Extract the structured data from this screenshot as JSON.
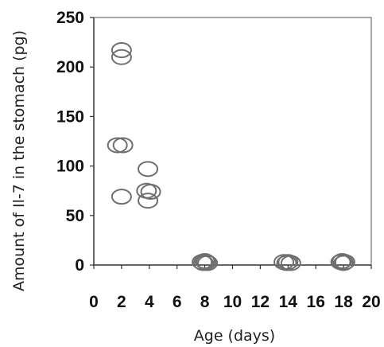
{
  "chart_data": {
    "type": "scatter",
    "title": "",
    "xlabel": "Age (days)",
    "ylabel": "Amount of Il-7 in the stomach (pg)",
    "xlim": [
      0,
      20
    ],
    "ylim": [
      0,
      250
    ],
    "x_ticks": [
      "0",
      "2",
      "4",
      "6",
      "8",
      "10",
      "12",
      "14",
      "16",
      "18",
      "20"
    ],
    "y_ticks": [
      "0",
      "50",
      "100",
      "150",
      "200",
      "250"
    ],
    "grid": false,
    "legend": "none",
    "marker_color": "#6f6f6f",
    "series": [
      {
        "points": [
          [
            2,
            217
          ],
          [
            2,
            210
          ],
          [
            1.7,
            121
          ],
          [
            2.1,
            121
          ],
          [
            2,
            69
          ],
          [
            3.9,
            97
          ],
          [
            3.8,
            75
          ],
          [
            4.1,
            74
          ],
          [
            3.9,
            65
          ],
          [
            7.8,
            3
          ],
          [
            8.1,
            3
          ],
          [
            7.9,
            2
          ],
          [
            8,
            4
          ],
          [
            8.2,
            2
          ],
          [
            13.7,
            3
          ],
          [
            14,
            3
          ],
          [
            14.2,
            2
          ],
          [
            13.9,
            2
          ],
          [
            17.8,
            3
          ],
          [
            18.1,
            3
          ],
          [
            18,
            2
          ],
          [
            17.9,
            4
          ]
        ]
      }
    ]
  }
}
